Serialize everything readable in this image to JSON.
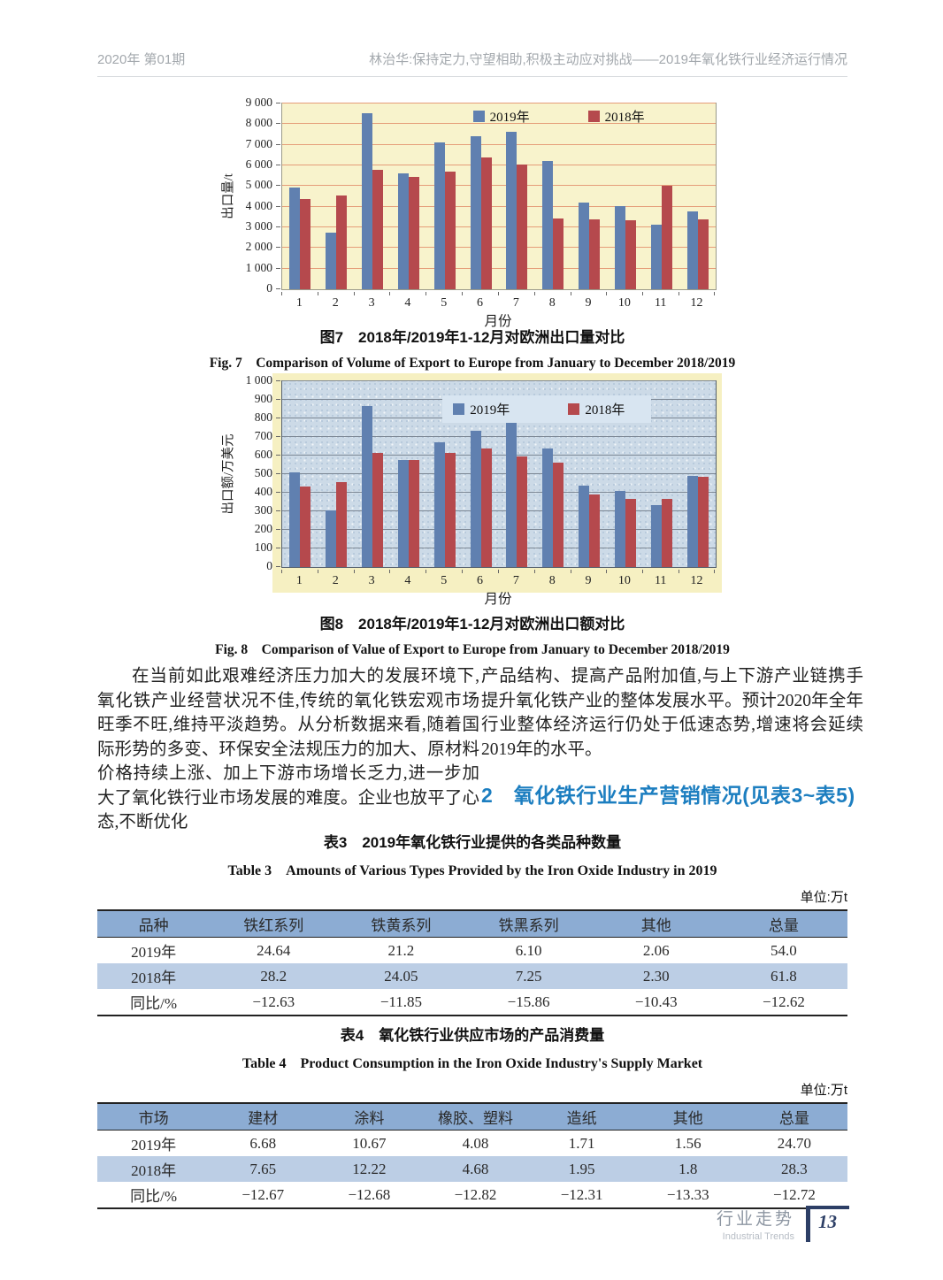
{
  "page": {
    "header": {
      "issue": "2020年 第01期",
      "running_title": "林治华:保持定力,守望相助,积极主动应对挑战——2019年氧化铁行业经济运行情况"
    },
    "footer": {
      "section_cn": "行业走势",
      "section_en": "Industrial Trends",
      "page_number": "13"
    }
  },
  "colors": {
    "bar_2019": "#6080b0",
    "bar_2018": "#b5494d",
    "heading_blue": "#1c7ec0",
    "table_header_bg": "#8cacd3",
    "table_alt_row_bg": "#bccee5",
    "chart1_plot_bg": "#f8f3cc",
    "chart2_plot_bg": "#ccdae7",
    "chart2_frame_bg": "#f6f0c2",
    "grid_chart1": "#e59d79",
    "grid_chart2": "#7c8794"
  },
  "chart_data": [
    {
      "type": "bar",
      "title_cn": "图7　2018年/2019年1-12月对欧洲出口量对比",
      "title_en": "Fig. 7　Comparison of Volume of Export to Europe from January to December 2018/2019",
      "xlabel": "月份",
      "ylabel": "出口量/t",
      "ylim": [
        0,
        9000
      ],
      "ytick_step": 1000,
      "grid": true,
      "legend_position": "top-center",
      "categories": [
        "1",
        "2",
        "3",
        "4",
        "5",
        "6",
        "7",
        "8",
        "9",
        "10",
        "11",
        "12"
      ],
      "series": [
        {
          "name": "2019年",
          "color": "#6080b0",
          "values": [
            4950,
            2750,
            8550,
            5600,
            7130,
            7420,
            7630,
            6200,
            4220,
            4030,
            3120,
            3780
          ]
        },
        {
          "name": "2018年",
          "color": "#b5494d",
          "values": [
            4370,
            4550,
            5780,
            5430,
            5680,
            6380,
            6050,
            3430,
            3390,
            3340,
            5010,
            3370
          ]
        }
      ]
    },
    {
      "type": "bar",
      "title_cn": "图8　2018年/2019年1-12月对欧洲出口额对比",
      "title_en": "Fig. 8　Comparison of Value of Export to Europe from January to December 2018/2019",
      "xlabel": "月份",
      "ylabel": "出口额/万美元",
      "ylim": [
        0,
        1000
      ],
      "ytick_step": 100,
      "grid": true,
      "legend_position": "top-center",
      "categories": [
        "1",
        "2",
        "3",
        "4",
        "5",
        "6",
        "7",
        "8",
        "9",
        "10",
        "11",
        "12"
      ],
      "series": [
        {
          "name": "2019年",
          "color": "#6080b0",
          "values": [
            510,
            303,
            865,
            575,
            672,
            735,
            790,
            638,
            440,
            410,
            332,
            492
          ]
        },
        {
          "name": "2018年",
          "color": "#b5494d",
          "values": [
            435,
            455,
            612,
            575,
            615,
            638,
            595,
            560,
            390,
            365,
            365,
            488
          ]
        }
      ]
    }
  ],
  "body": {
    "col_left": "在当前如此艰难经济压力加大的发展环境下,氧化铁产业经营状况不佳,传统的氧化铁宏观市场旺季不旺,维持平淡趋势。从分析数据来看,随着国际形势的多变、环保安全法规压力的加大、原材料价格持续上涨、加上下游市场增长乏力,进一步加大了氧化铁行业市场发展的难度。企业也放平了心态,不断优化",
    "col_right": "产品结构、提高产品附加值,与上下游产业链携手提升氧化铁产业的整体发展水平。预计2020年全年行业整体经济运行仍处于低速态势,增速将会延续2019年的水平。",
    "section_heading": "2　氧化铁行业生产营销情况(见表3~表5)"
  },
  "tables": [
    {
      "title_cn": "表3　2019年氧化铁行业提供的各类品种数量",
      "title_en": "Table 3　Amounts of Various Types Provided by the Iron Oxide Industry in 2019",
      "unit": "单位:万t",
      "headers": [
        "品种",
        "铁红系列",
        "铁黄系列",
        "铁黑系列",
        "其他",
        "总量"
      ],
      "rows": [
        [
          "2019年",
          "24.64",
          "21.2",
          "6.10",
          "2.06",
          "54.0"
        ],
        [
          "2018年",
          "28.2",
          "24.05",
          "7.25",
          "2.30",
          "61.8"
        ],
        [
          "同比/%",
          "−12.63",
          "−11.85",
          "−15.86",
          "−10.43",
          "−12.62"
        ]
      ]
    },
    {
      "title_cn": "表4　氧化铁行业供应市场的产品消费量",
      "title_en": "Table 4　Product Consumption in the Iron Oxide Industry's Supply Market",
      "unit": "单位:万t",
      "headers": [
        "市场",
        "建材",
        "涂料",
        "橡胶、塑料",
        "造纸",
        "其他",
        "总量"
      ],
      "rows": [
        [
          "2019年",
          "6.68",
          "10.67",
          "4.08",
          "1.71",
          "1.56",
          "24.70"
        ],
        [
          "2018年",
          "7.65",
          "12.22",
          "4.68",
          "1.95",
          "1.8",
          "28.3"
        ],
        [
          "同比/%",
          "−12.67",
          "−12.68",
          "−12.82",
          "−12.31",
          "−13.33",
          "−12.72"
        ]
      ]
    }
  ]
}
